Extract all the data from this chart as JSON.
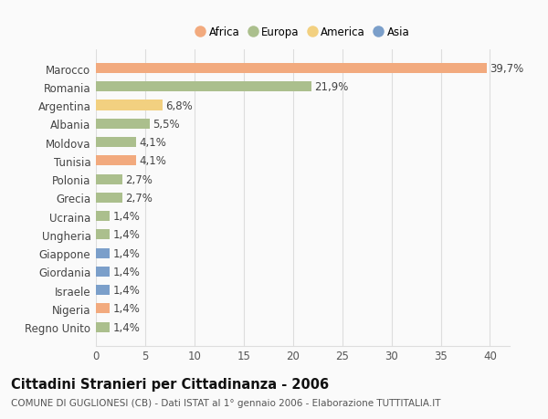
{
  "countries": [
    "Marocco",
    "Romania",
    "Argentina",
    "Albania",
    "Moldova",
    "Tunisia",
    "Polonia",
    "Grecia",
    "Ucraina",
    "Ungheria",
    "Giappone",
    "Giordania",
    "Israele",
    "Nigeria",
    "Regno Unito"
  ],
  "values": [
    39.7,
    21.9,
    6.8,
    5.5,
    4.1,
    4.1,
    2.7,
    2.7,
    1.4,
    1.4,
    1.4,
    1.4,
    1.4,
    1.4,
    1.4
  ],
  "continents": [
    "Africa",
    "Europa",
    "America",
    "Europa",
    "Europa",
    "Africa",
    "Europa",
    "Europa",
    "Europa",
    "Europa",
    "Asia",
    "Asia",
    "Asia",
    "Africa",
    "Europa"
  ],
  "colors": {
    "Africa": "#F2AA7E",
    "Europa": "#ABBF8D",
    "America": "#F2D080",
    "Asia": "#7B9FCA"
  },
  "xlim": [
    0,
    42
  ],
  "xticks": [
    0,
    5,
    10,
    15,
    20,
    25,
    30,
    35,
    40
  ],
  "title": "Cittadini Stranieri per Cittadinanza - 2006",
  "subtitle": "COMUNE DI GUGLIONESI (CB) - Dati ISTAT al 1° gennaio 2006 - Elaborazione TUTTITALIA.IT",
  "bg_color": "#FAFAFA",
  "grid_color": "#DDDDDD",
  "bar_height": 0.55,
  "label_fontsize": 8.5,
  "title_fontsize": 10.5,
  "subtitle_fontsize": 7.5,
  "legend_order": [
    "Africa",
    "Europa",
    "America",
    "Asia"
  ]
}
